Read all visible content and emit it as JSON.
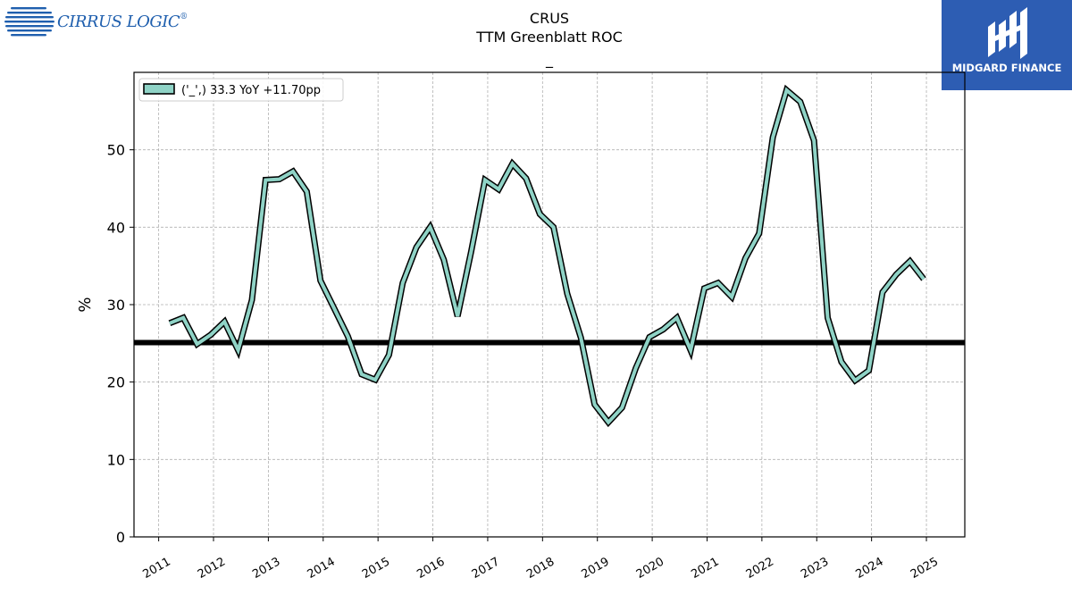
{
  "header": {
    "line1": "CRUS",
    "line2": "TTM Greenblatt ROC",
    "line3": "_"
  },
  "logos": {
    "left_text": "CIRRUS LOGIC",
    "left_mark": "®",
    "right_text": "MIDGARD FINANCE"
  },
  "colors": {
    "series": "#8fd3c6",
    "outline": "#000000",
    "reference": "#000000",
    "grid": "#b0b0b0",
    "brand_blue": "#2d5db3"
  },
  "chart_data": {
    "type": "line",
    "title": "CRUS",
    "subtitle": "TTM Greenblatt ROC",
    "xlabel": "",
    "ylabel": "%",
    "ylim": [
      0,
      60
    ],
    "yticks": [
      0,
      10,
      20,
      30,
      40,
      50
    ],
    "xlim": [
      2010.55,
      2025.7
    ],
    "xticks": [
      "2011",
      "2012",
      "2013",
      "2014",
      "2015",
      "2016",
      "2017",
      "2018",
      "2019",
      "2020",
      "2021",
      "2022",
      "2023",
      "2024",
      "2025"
    ],
    "grid": true,
    "legend_position": "top-left",
    "reference_line": 25.1,
    "series": [
      {
        "name": "('_',) 33.3 YoY +11.70pp",
        "x": [
          2011.2,
          2011.45,
          2011.7,
          2011.95,
          2012.2,
          2012.45,
          2012.7,
          2012.95,
          2013.2,
          2013.45,
          2013.7,
          2013.95,
          2014.2,
          2014.45,
          2014.7,
          2014.95,
          2015.2,
          2015.45,
          2015.7,
          2015.95,
          2016.2,
          2016.45,
          2016.7,
          2016.95,
          2017.2,
          2017.45,
          2017.7,
          2017.95,
          2018.2,
          2018.45,
          2018.7,
          2018.95,
          2019.2,
          2019.45,
          2019.7,
          2019.95,
          2020.2,
          2020.45,
          2020.7,
          2020.95,
          2021.2,
          2021.45,
          2021.7,
          2021.95,
          2022.2,
          2022.45,
          2022.7,
          2022.95,
          2023.2,
          2023.45,
          2023.7,
          2023.95,
          2024.2,
          2024.45,
          2024.7,
          2024.95
        ],
        "y": [
          27.6,
          28.3,
          24.9,
          26.1,
          27.8,
          24.1,
          30.6,
          46.1,
          46.2,
          47.2,
          44.6,
          33.1,
          29.5,
          25.9,
          21.0,
          20.3,
          23.5,
          32.8,
          37.4,
          40.0,
          35.8,
          28.5,
          36.9,
          46.1,
          44.9,
          48.2,
          46.3,
          41.7,
          40.0,
          31.4,
          25.7,
          17.1,
          14.8,
          16.7,
          21.8,
          25.8,
          26.8,
          28.3,
          24.1,
          32.1,
          32.8,
          31.0,
          36.0,
          39.2,
          51.6,
          57.7,
          56.2,
          51.2,
          28.3,
          22.6,
          20.2,
          21.5,
          31.6,
          33.9,
          35.6,
          33.3
        ]
      }
    ]
  }
}
